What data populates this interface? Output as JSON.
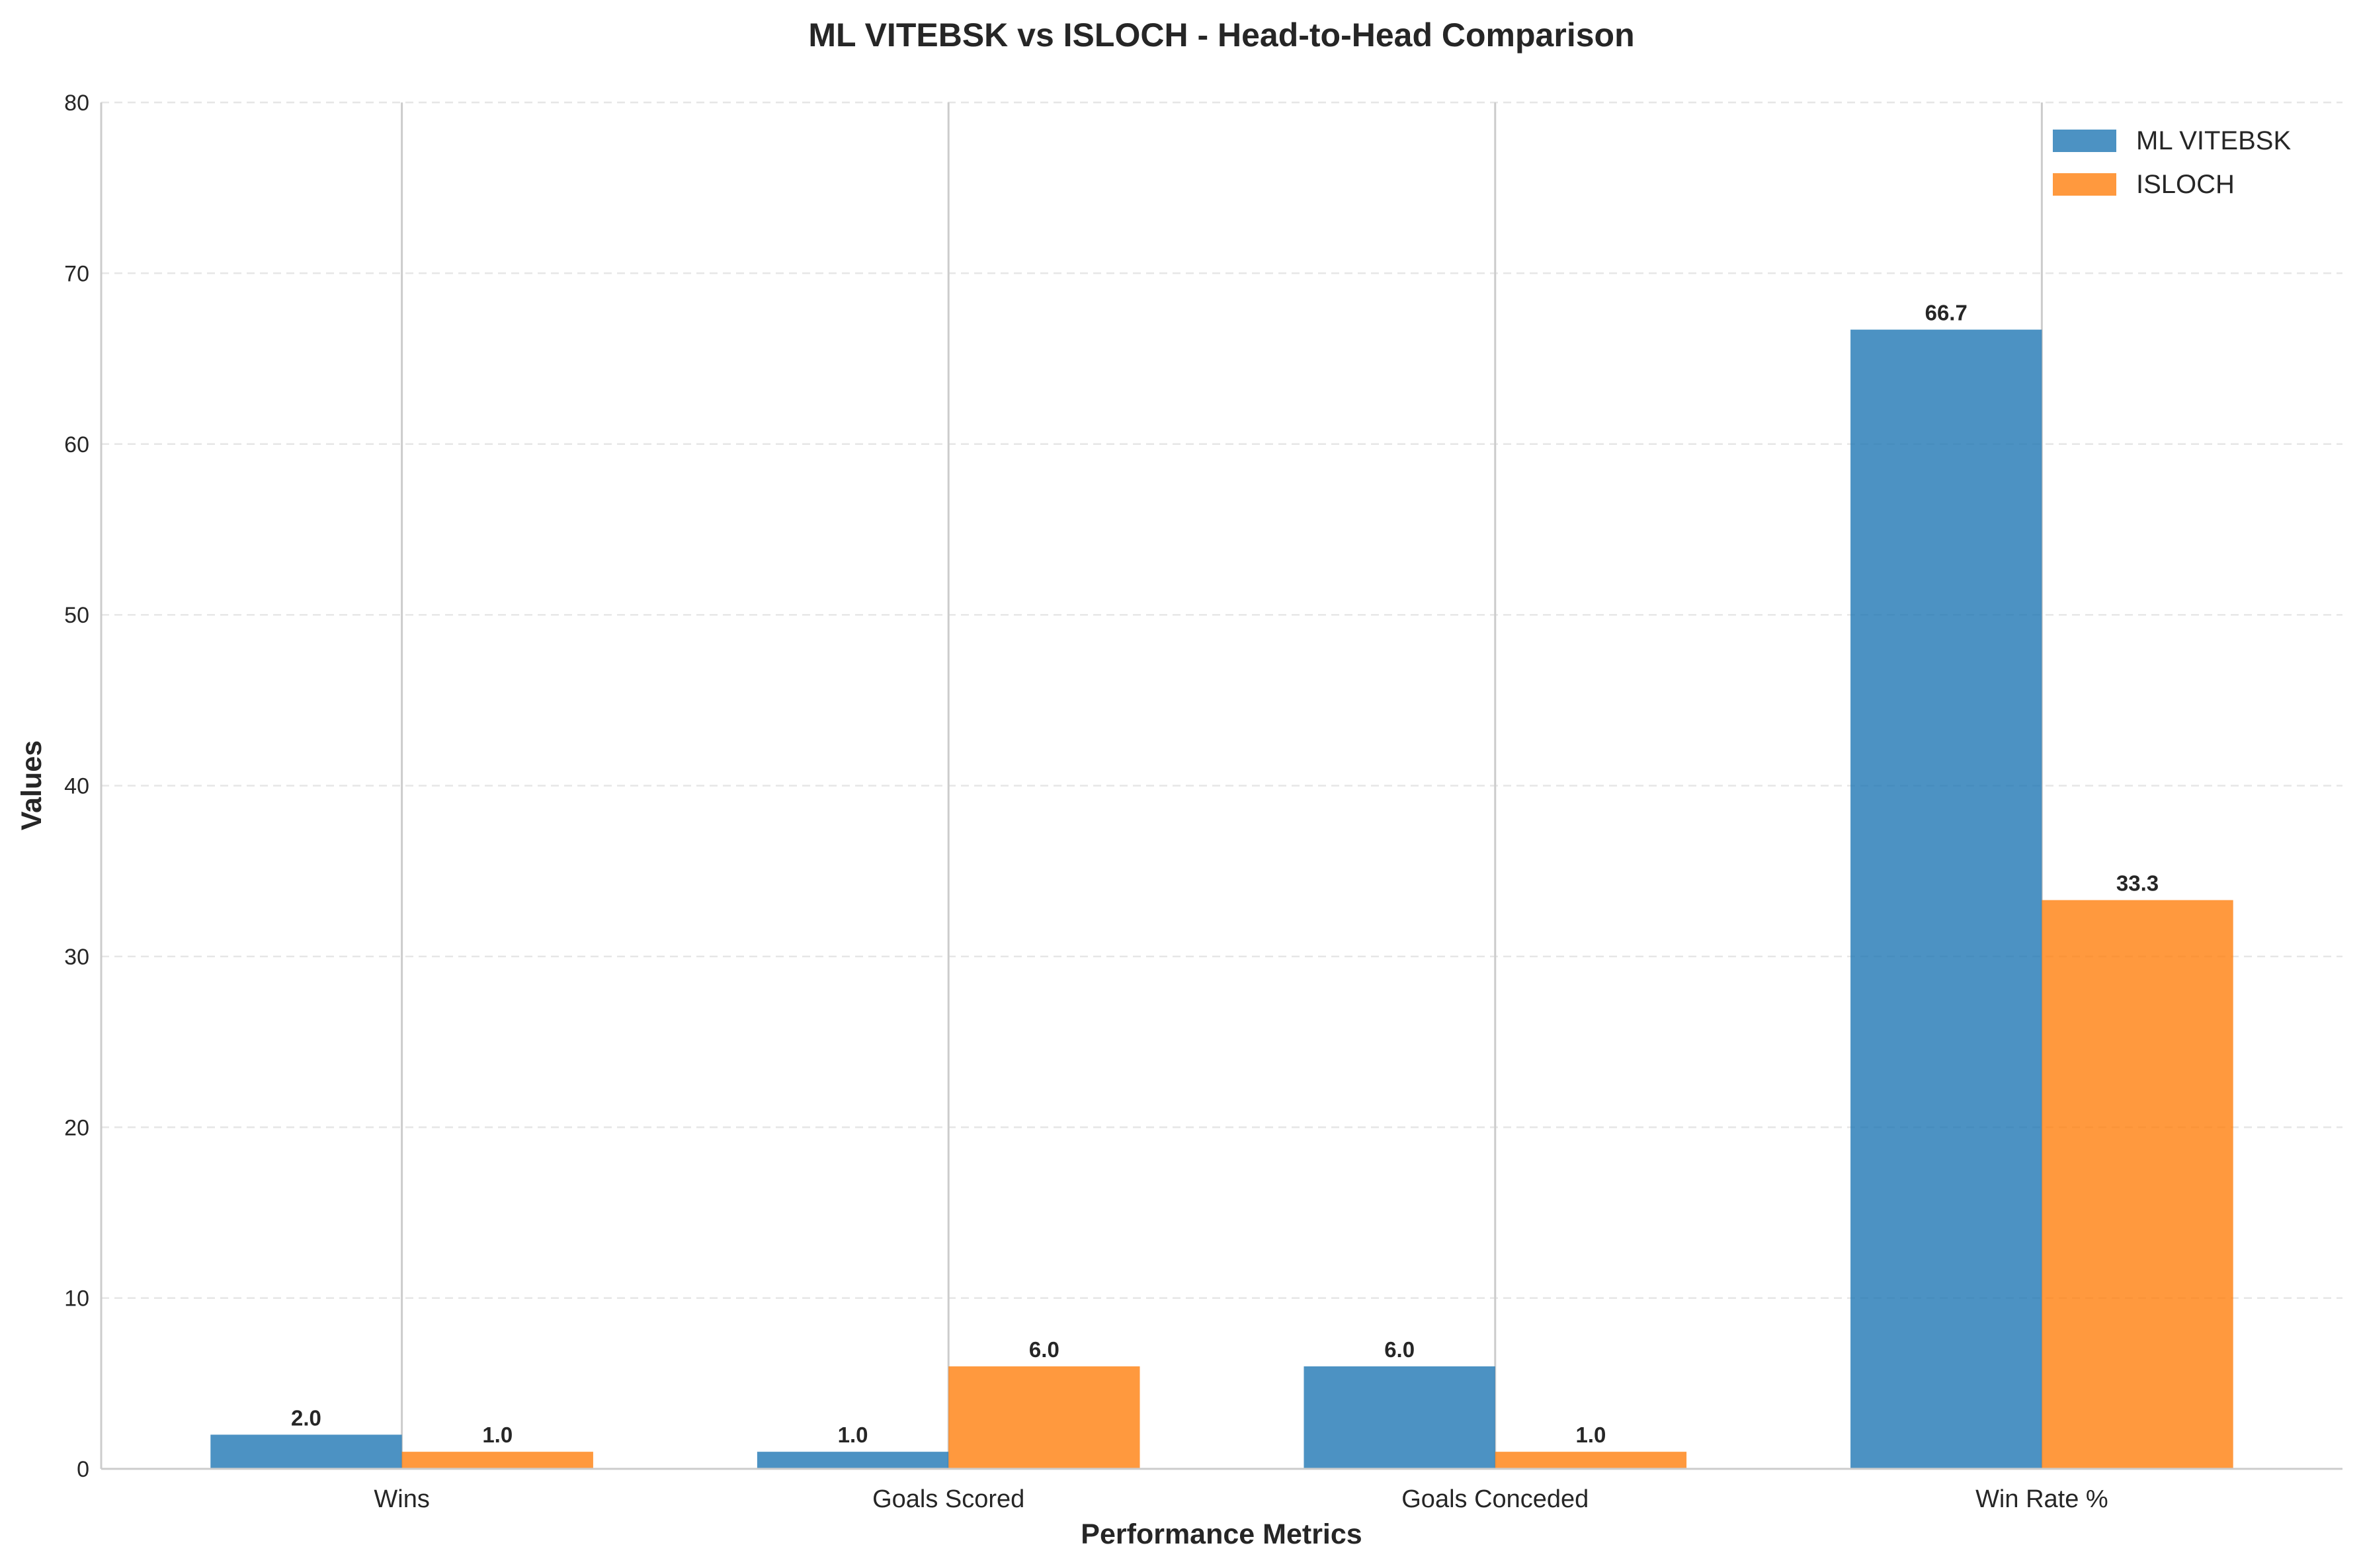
{
  "chart_data": {
    "type": "bar",
    "title": "ML VITEBSK vs ISLOCH - Head-to-Head Comparison",
    "xlabel": "Performance Metrics",
    "ylabel": "Values",
    "categories": [
      "Wins",
      "Goals Scored",
      "Goals Conceded",
      "Win Rate %"
    ],
    "series": [
      {
        "name": "ML VITEBSK",
        "values": [
          2.0,
          1.0,
          6.0,
          66.7
        ],
        "labels": [
          "2.0",
          "1.0",
          "6.0",
          "66.7"
        ],
        "color": "#1f77b4"
      },
      {
        "name": "ISLOCH",
        "values": [
          1.0,
          6.0,
          1.0,
          33.3
        ],
        "labels": [
          "1.0",
          "6.0",
          "1.0",
          "33.3"
        ],
        "color": "#ff7f0e"
      }
    ],
    "ylim": [
      0,
      80
    ],
    "yticks": [
      0,
      10,
      20,
      30,
      40,
      50,
      60,
      70,
      80
    ],
    "ytick_labels": [
      "0",
      "10",
      "20",
      "30",
      "40",
      "50",
      "60",
      "70",
      "80"
    ],
    "grid": true,
    "legend_position": "top-right"
  }
}
